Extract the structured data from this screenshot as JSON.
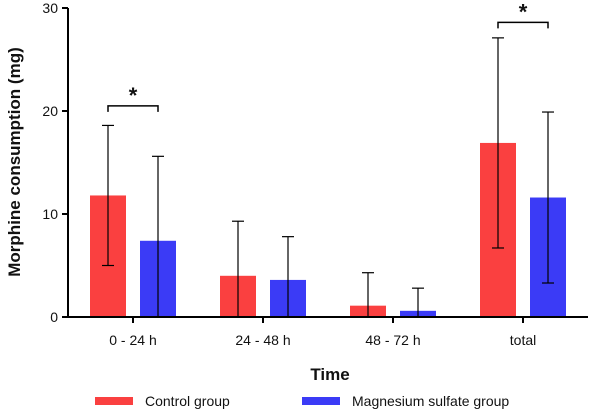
{
  "chart_data": {
    "type": "bar",
    "title": "",
    "xlabel": "Time",
    "ylabel": "Morphine consumption (mg)",
    "ylim": [
      0,
      30
    ],
    "yticks": [
      0,
      10,
      20,
      30
    ],
    "categories": [
      "0 - 24 h",
      "24 - 48 h",
      "48 - 72 h",
      "total"
    ],
    "series": [
      {
        "name": "Control group",
        "color": "#fa4040",
        "values": [
          11.8,
          4.0,
          1.1,
          16.9
        ],
        "error_upper": [
          18.6,
          9.3,
          4.3,
          27.1
        ],
        "error_lower": [
          5.0,
          0,
          0,
          6.7
        ]
      },
      {
        "name": "Magnesium sulfate group",
        "color": "#3b3bf6",
        "values": [
          7.4,
          3.6,
          0.6,
          11.6
        ],
        "error_upper": [
          15.6,
          7.8,
          2.8,
          19.9
        ],
        "error_lower": [
          0,
          0,
          0,
          3.3
        ]
      }
    ],
    "significance": [
      {
        "category_index": 0,
        "label": "*",
        "y": 20.5
      },
      {
        "category_index": 3,
        "label": "*",
        "y": 28.6
      }
    ],
    "legend_position": "bottom",
    "grid": false
  }
}
